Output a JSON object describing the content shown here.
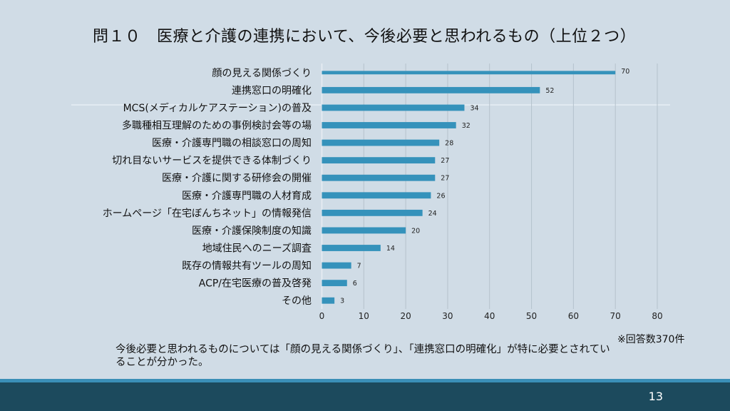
{
  "slide": {
    "title": "問１０　医療と介護の連携において、今後必要と思われるもの（上位２つ）",
    "note": "※回答数370件",
    "summary": "今後必要と思われるものについては「顔の見える関係づくり」、「連携窓口の明確化」が特に必要とされていることが分かった。",
    "page_number": "13"
  },
  "colors": {
    "background": "#d0dce6",
    "bar": "#3592bb",
    "gridline": "#b5c2cc",
    "footer": "#1c4a5d",
    "footer_stripe": "#3a8fb7"
  },
  "chart_data": {
    "type": "bar",
    "orientation": "horizontal",
    "title": "問１０　医療と介護の連携において、今後必要と思われるもの（上位２つ）",
    "xlabel": "",
    "ylabel": "",
    "xlim": [
      0,
      80
    ],
    "xticks": [
      0,
      10,
      20,
      30,
      40,
      50,
      60,
      70,
      80
    ],
    "grid": true,
    "legend": "none",
    "categories": [
      "顔の見える関係づくり",
      "連携窓口の明確化",
      "MCS(メディカルケアステーション)の普及",
      "多職種相互理解のための事例検討会等の場",
      "医療・介護専門職の相談窓口の周知",
      "切れ目ないサービスを提供できる体制づくり",
      "医療・介護に関する研修会の開催",
      "医療・介護専門職の人材育成",
      "ホームページ「在宅ぼんちネット」の情報発信",
      "医療・介護保険制度の知識",
      "地域住民へのニーズ調査",
      "既存の情報共有ツールの周知",
      "ACP/在宅医療の普及啓発",
      "その他"
    ],
    "values": [
      70,
      52,
      34,
      32,
      28,
      27,
      27,
      26,
      24,
      20,
      14,
      7,
      6,
      3
    ]
  }
}
